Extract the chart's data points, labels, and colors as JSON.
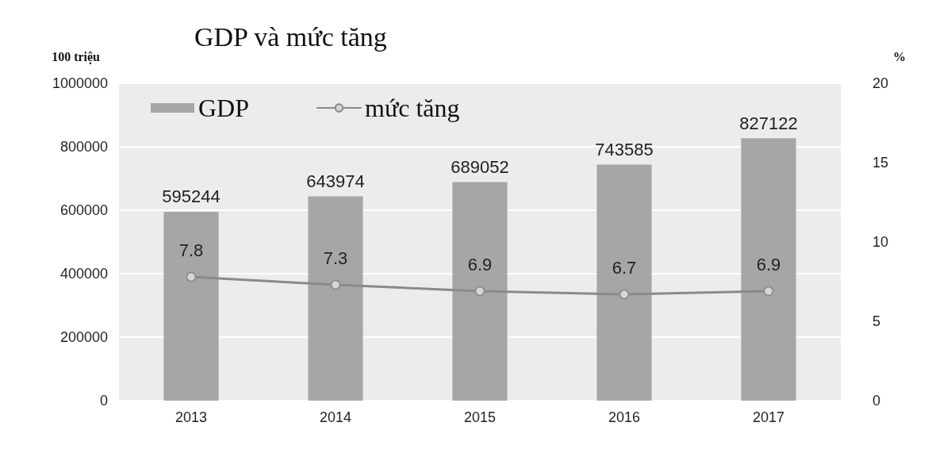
{
  "chart_data": {
    "type": "bar",
    "title": "GDP và mức tăng",
    "ylabel": "100 triệu",
    "y2label": "%",
    "categories": [
      "2013",
      "2014",
      "2015",
      "2016",
      "2017"
    ],
    "series": [
      {
        "name": "GDP",
        "color": "#a6a6a6",
        "values": [
          595244,
          643974,
          689052,
          743585,
          827122
        ]
      },
      {
        "name": "mức tăng",
        "type": "line",
        "axis": "y2",
        "color": "#8a8a8a",
        "values": [
          7.8,
          7.3,
          6.9,
          6.7,
          6.9
        ]
      }
    ],
    "ylim": [
      0,
      1000000
    ],
    "yticks": [
      0,
      200000,
      400000,
      600000,
      800000,
      1000000
    ],
    "y2lim": [
      0,
      20
    ],
    "y2ticks": [
      0,
      5,
      10,
      15,
      20
    ],
    "data_labels": true,
    "grid": "y",
    "legend": "top left",
    "marker": "circle",
    "line_style": "solid"
  }
}
